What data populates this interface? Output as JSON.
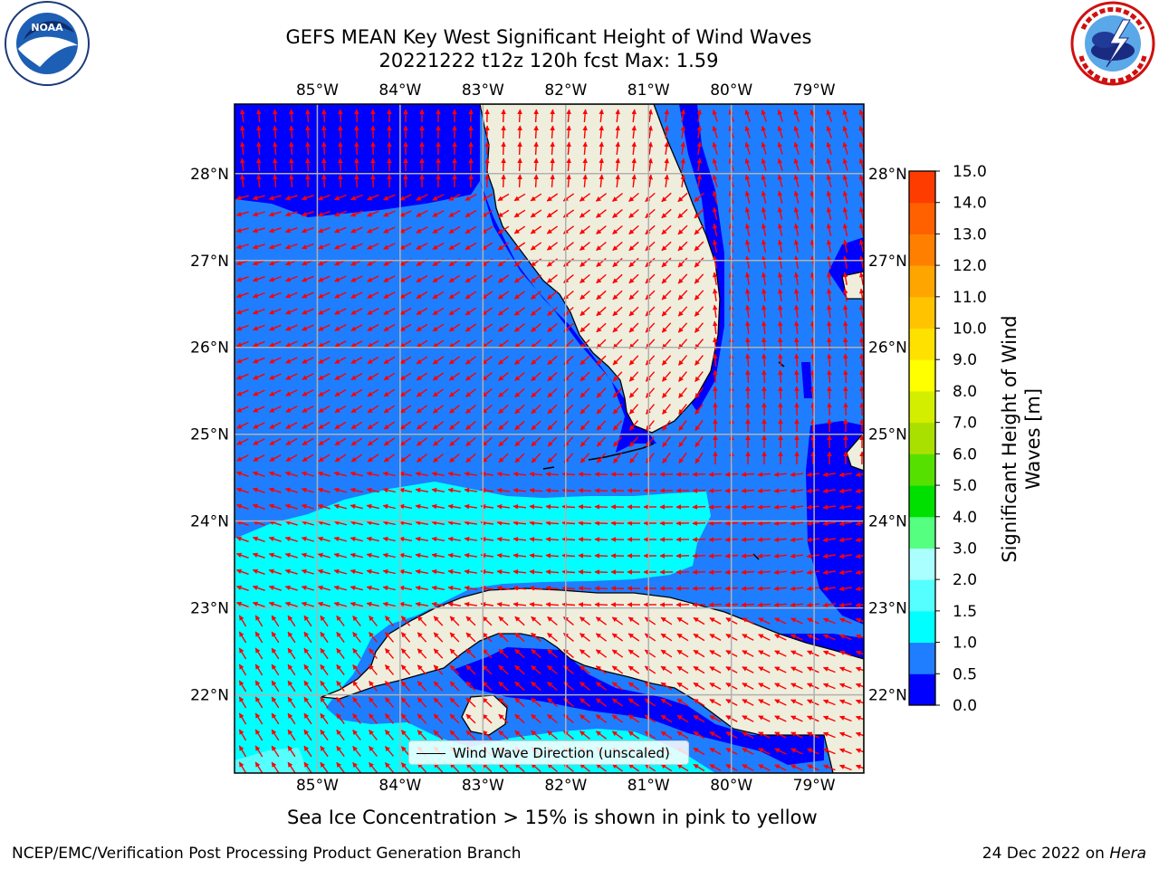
{
  "title_line1": "GEFS MEAN Key West Significant Height of Wind Waves",
  "title_line2": "20221222 t12z 120h fcst   Max: 1.59",
  "logos": {
    "left": "noaa-logo",
    "right": "national-weather-service-logo"
  },
  "map": {
    "lon_ticks": [
      "85°W",
      "84°W",
      "83°W",
      "82°W",
      "81°W",
      "80°W",
      "79°W"
    ],
    "lat_ticks": [
      "28°N",
      "27°N",
      "26°N",
      "25°N",
      "24°N",
      "23°N",
      "22°N"
    ],
    "lon_range": [
      -86,
      -78.4
    ],
    "lat_range": [
      21.1,
      28.8
    ],
    "gridlines": true,
    "land_color": "#efeedd",
    "arrow_color": "#ff0000",
    "legend_label": "Wind Wave Direction (unscaled)",
    "legend_placement": "lower-center"
  },
  "colorbar": {
    "title_line1": "Significant Height of Wind",
    "title_line2": "Waves [m]",
    "ticks": [
      "0.0",
      "0.5",
      "1.0",
      "1.5",
      "2.0",
      "3.0",
      "4.0",
      "5.0",
      "6.0",
      "7.0",
      "8.0",
      "9.0",
      "10.0",
      "11.0",
      "12.0",
      "13.0",
      "14.0",
      "15.0"
    ],
    "colors": [
      "#0000ff",
      "#1e7eff",
      "#00ffff",
      "#55ffff",
      "#aaffff",
      "#55ff7f",
      "#00e000",
      "#55e000",
      "#aae000",
      "#d4ee00",
      "#ffff00",
      "#ffe100",
      "#ffc300",
      "#ffa500",
      "#ff8000",
      "#ff6000",
      "#ff3c00"
    ]
  },
  "caption": "Sea Ice Concentration > 15% is shown in pink to yellow",
  "footer_left": "NCEP/EMC/Verification Post Processing Product Generation Branch",
  "footer_right_date": "24 Dec 2022 on",
  "footer_right_host": "Hera"
}
